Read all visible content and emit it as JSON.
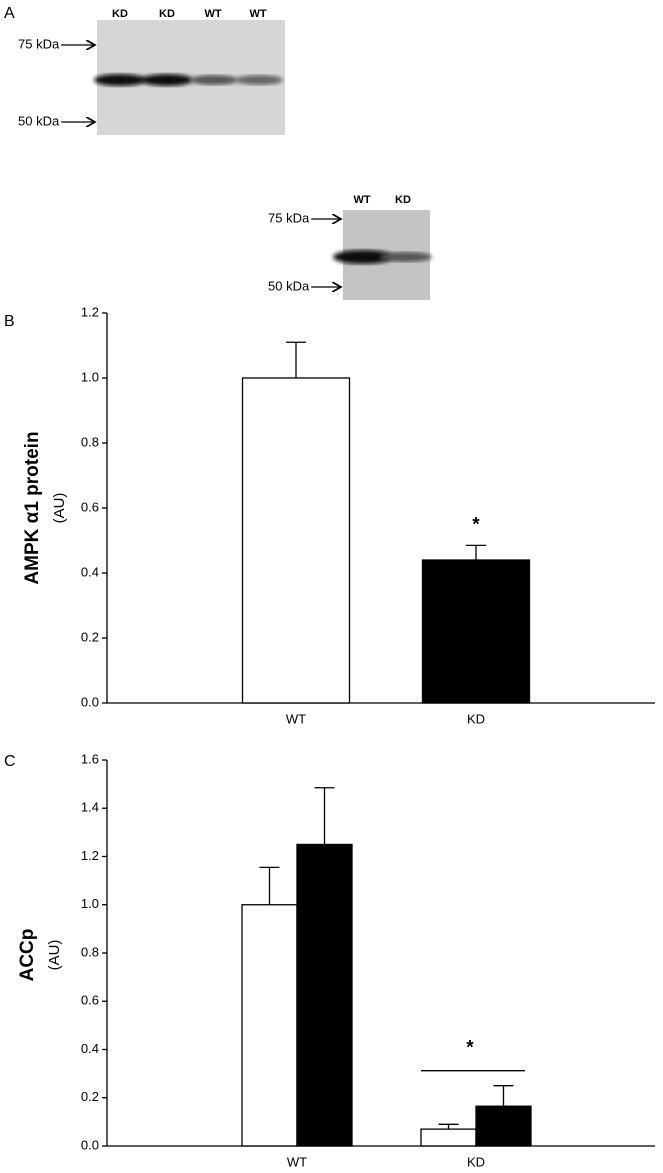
{
  "figure": {
    "panel_labels": [
      "A",
      "B",
      "C"
    ],
    "blots": [
      {
        "lanes": [
          "KD",
          "KD",
          "WT",
          "WT"
        ],
        "markers": [
          "75 kDa",
          "50 kDa"
        ]
      },
      {
        "lanes": [
          "WT",
          "KD"
        ],
        "markers": [
          "75 kDa",
          "50 kDa"
        ]
      }
    ]
  },
  "chart_data": [
    {
      "type": "bar",
      "y_label": "AMPK α1 protein",
      "y_unit": "(AU)",
      "categories": [
        "WT",
        "KD"
      ],
      "values": [
        1.0,
        0.44
      ],
      "errors": [
        0.11,
        0.045
      ],
      "colors": [
        "#ffffff",
        "#000000"
      ],
      "annotation": "*",
      "ylim": [
        0,
        1.2
      ],
      "yticks": [
        {
          "value": 0,
          "label": "0.0"
        },
        {
          "value": 0.2,
          "label": "0.2"
        },
        {
          "value": 0.4,
          "label": "0.4"
        },
        {
          "value": 0.6,
          "label": "0.6"
        },
        {
          "value": 0.8,
          "label": "0.8"
        },
        {
          "value": 1,
          "label": "1.0"
        },
        {
          "value": 1.2,
          "label": "1.2"
        }
      ]
    },
    {
      "type": "grouped-bar",
      "y_label": "ACCp",
      "y_unit": "(AU)",
      "categories": [
        "WT",
        "KD"
      ],
      "series": [
        {
          "color": "#ffffff",
          "values": [
            1.0,
            0.07
          ],
          "errors": [
            0.155,
            0.02
          ]
        },
        {
          "color": "#000000",
          "values": [
            1.25,
            0.165
          ],
          "errors": [
            0.235,
            0.085
          ]
        }
      ],
      "annotation": "*",
      "ylim": [
        0,
        1.6
      ],
      "yticks": [
        {
          "value": 0,
          "label": "0.0"
        },
        {
          "value": 0.2,
          "label": "0.2"
        },
        {
          "value": 0.4,
          "label": "0.4"
        },
        {
          "value": 0.6,
          "label": "0.6"
        },
        {
          "value": 0.8,
          "label": "0.8"
        },
        {
          "value": 1,
          "label": "1.0"
        },
        {
          "value": 1.2,
          "label": "1.2"
        },
        {
          "value": 1.4,
          "label": "1.4"
        },
        {
          "value": 1.6,
          "label": "1.6"
        }
      ]
    }
  ]
}
